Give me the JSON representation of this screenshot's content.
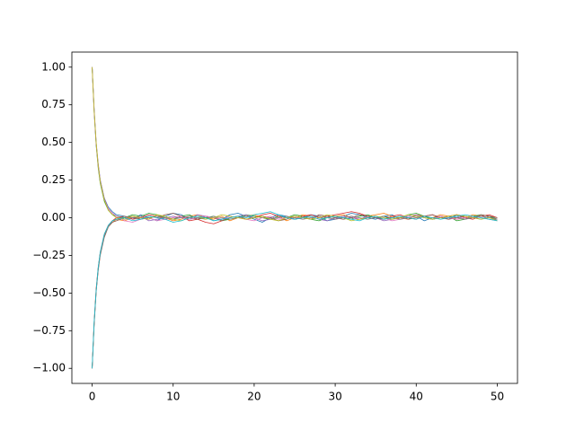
{
  "chart_data": {
    "type": "line",
    "x": [
      0,
      0.25,
      0.5,
      0.75,
      1,
      1.5,
      2,
      2.5,
      3,
      4,
      5,
      6,
      7,
      8,
      9,
      10,
      11,
      12,
      13,
      14,
      15,
      16,
      17,
      18,
      19,
      20,
      21,
      22,
      23,
      24,
      25,
      26,
      27,
      28,
      29,
      30,
      31,
      32,
      33,
      34,
      35,
      36,
      37,
      38,
      39,
      40,
      41,
      42,
      43,
      44,
      45,
      46,
      47,
      48,
      49,
      50
    ],
    "xlim": [
      -2.5,
      52.5
    ],
    "xticks": [
      0,
      10,
      20,
      30,
      40,
      50
    ],
    "ylim": [
      -1.1,
      1.1
    ],
    "yticks": [
      {
        "value": -1,
        "label": "−1.00"
      },
      {
        "value": -0.75,
        "label": "−0.75"
      },
      {
        "value": -0.5,
        "label": "−0.50"
      },
      {
        "value": -0.25,
        "label": "−0.25"
      },
      {
        "value": 0,
        "label": "0.00"
      },
      {
        "value": 0.25,
        "label": "0.25"
      },
      {
        "value": 0.5,
        "label": "0.50"
      },
      {
        "value": 0.75,
        "label": "0.75"
      },
      {
        "value": 1,
        "label": "1.00"
      }
    ],
    "series": [
      {
        "color": "#1f77b4",
        "values": [
          1,
          0.71,
          0.49,
          0.35,
          0.25,
          0.13,
          0.07,
          0.04,
          0.02,
          0.01,
          -0.01,
          0.02,
          0.0,
          -0.02,
          0.01,
          0.03,
          0.02,
          -0.01,
          0.0,
          0.01,
          -0.02,
          -0.01,
          0.02,
          0.03,
          0.01,
          -0.01,
          -0.03,
          0.0,
          0.02,
          0.01,
          -0.01,
          0.0,
          0.02,
          0.01,
          -0.02,
          -0.01,
          0.01,
          0.03,
          0.02,
          0.0,
          -0.01,
          0.01,
          0.02,
          -0.01,
          0.0,
          0.01,
          -0.02,
          0.0,
          0.01,
          -0.01,
          0.02,
          0.01,
          0.0,
          -0.01,
          0.01,
          -0.02
        ]
      },
      {
        "color": "#ff7f0e",
        "values": [
          -1,
          -0.7,
          -0.48,
          -0.34,
          -0.24,
          -0.12,
          -0.06,
          -0.03,
          -0.01,
          -0.02,
          0.0,
          0.01,
          -0.01,
          0.02,
          0.0,
          -0.02,
          -0.01,
          0.01,
          0.02,
          0.0,
          -0.01,
          0.01,
          -0.02,
          0.0,
          0.01,
          0.02,
          0.0,
          -0.01,
          0.01,
          -0.02,
          0.0,
          0.02,
          0.01,
          -0.01,
          0.0,
          0.01,
          0.02,
          0.0,
          -0.01,
          0.01,
          0.02,
          0.03,
          0.01,
          0.0,
          -0.01,
          0.02,
          0.01,
          0.0,
          0.02,
          0.01,
          -0.01,
          0.0,
          0.02,
          0.01,
          0.0,
          -0.01
        ]
      },
      {
        "color": "#2ca02c",
        "values": [
          1,
          0.7,
          0.48,
          0.33,
          0.23,
          0.11,
          0.05,
          0.02,
          0.01,
          0.0,
          0.02,
          0.01,
          0.03,
          0.02,
          0.0,
          -0.01,
          0.01,
          0.02,
          -0.01,
          0.0,
          0.01,
          -0.02,
          -0.01,
          0.0,
          0.02,
          0.01,
          0.0,
          -0.01,
          0.01,
          0.0,
          0.02,
          0.01,
          -0.01,
          -0.02,
          0.0,
          0.01,
          0.0,
          -0.01,
          0.01,
          0.02,
          0.0,
          0.01,
          -0.01,
          0.0,
          0.02,
          0.03,
          0.01,
          -0.01,
          0.0,
          0.01,
          -0.02,
          -0.01,
          0.01,
          0.02,
          0.01,
          -0.01
        ]
      },
      {
        "color": "#d62728",
        "values": [
          -1,
          -0.69,
          -0.47,
          -0.33,
          -0.23,
          -0.11,
          -0.05,
          -0.02,
          0.0,
          0.01,
          -0.01,
          0.0,
          0.02,
          0.01,
          -0.01,
          0.0,
          0.01,
          -0.02,
          -0.01,
          -0.03,
          -0.04,
          -0.02,
          0.0,
          0.01,
          -0.01,
          0.0,
          0.02,
          0.03,
          0.01,
          0.0,
          -0.01,
          0.01,
          0.02,
          0.0,
          0.01,
          0.02,
          0.03,
          0.04,
          0.03,
          0.01,
          0.0,
          -0.01,
          0.01,
          0.02,
          0.0,
          -0.01,
          0.01,
          0.02,
          0.0,
          0.01,
          0.02,
          0.0,
          -0.01,
          0.01,
          0.02,
          0.0
        ]
      },
      {
        "color": "#9467bd",
        "values": [
          1,
          0.72,
          0.5,
          0.36,
          0.25,
          0.13,
          0.06,
          0.03,
          0.01,
          -0.01,
          0.0,
          0.01,
          -0.02,
          -0.01,
          0.0,
          0.01,
          0.0,
          -0.01,
          0.02,
          0.01,
          0.0,
          -0.01,
          0.0,
          0.01,
          0.02,
          0.0,
          -0.02,
          -0.01,
          0.0,
          0.01,
          -0.01,
          0.0,
          0.01,
          -0.01,
          -0.02,
          0.0,
          0.01,
          0.0,
          -0.01,
          0.01,
          0.0,
          -0.02,
          -0.01,
          0.0,
          0.01,
          0.02,
          0.0,
          -0.01,
          0.01,
          0.0,
          0.01,
          -0.01,
          0.0,
          0.01,
          0.0,
          -0.01
        ]
      },
      {
        "color": "#8c564b",
        "values": [
          -1,
          -0.71,
          -0.49,
          -0.35,
          -0.25,
          -0.13,
          -0.06,
          -0.03,
          -0.02,
          0.0,
          0.01,
          -0.01,
          0.01,
          0.0,
          0.02,
          0.03,
          0.01,
          0.0,
          -0.01,
          0.01,
          0.0,
          -0.02,
          0.0,
          0.01,
          -0.01,
          0.0,
          0.01,
          0.0,
          -0.02,
          -0.01,
          0.01,
          0.0,
          -0.01,
          0.02,
          0.01,
          0.0,
          -0.01,
          0.0,
          0.02,
          0.01,
          0.0,
          -0.01,
          0.0,
          0.01,
          -0.01,
          0.0,
          0.01,
          0.02,
          0.0,
          -0.01,
          0.0,
          0.01,
          0.0,
          0.02,
          0.01,
          0.0
        ]
      },
      {
        "color": "#e377c2",
        "values": [
          1,
          0.7,
          0.49,
          0.34,
          0.24,
          0.12,
          0.06,
          0.03,
          0.01,
          -0.02,
          -0.03,
          -0.01,
          0.0,
          -0.02,
          -0.01,
          0.0,
          0.01,
          -0.01,
          0.0,
          0.01,
          0.0,
          -0.01,
          0.01,
          0.0,
          -0.01,
          -0.02,
          0.0,
          0.01,
          -0.01,
          0.0,
          0.01,
          -0.01,
          0.0,
          0.01,
          0.0,
          -0.01,
          0.0,
          0.01,
          -0.01,
          0.0,
          0.01,
          0.0,
          -0.02,
          -0.01,
          0.0,
          0.01,
          0.0,
          -0.01,
          0.01,
          0.0,
          -0.01,
          0.0,
          0.01,
          0.0,
          -0.01,
          -0.02
        ]
      },
      {
        "color": "#7f7f7f",
        "values": [
          -1,
          -0.7,
          -0.49,
          -0.34,
          -0.24,
          -0.12,
          -0.06,
          -0.02,
          -0.01,
          0.01,
          0.0,
          -0.01,
          0.0,
          0.01,
          0.0,
          -0.01,
          0.0,
          0.01,
          0.0,
          -0.01,
          0.01,
          0.0,
          -0.01,
          0.0,
          0.01,
          0.0,
          0.01,
          -0.01,
          0.0,
          0.01,
          0.0,
          -0.01,
          0.0,
          0.01,
          0.0,
          -0.01,
          0.0,
          0.01,
          0.0,
          -0.01,
          0.0,
          0.01,
          0.0,
          -0.01,
          0.0,
          0.01,
          0.0,
          -0.01,
          0.0,
          0.01,
          0.0,
          -0.01,
          0.0,
          0.01,
          0.0,
          -0.01
        ]
      },
      {
        "color": "#bcbd22",
        "values": [
          1,
          0.71,
          0.5,
          0.35,
          0.24,
          0.12,
          0.05,
          0.02,
          0.0,
          -0.01,
          0.01,
          0.0,
          -0.01,
          0.02,
          0.01,
          -0.01,
          -0.02,
          0.0,
          0.01,
          -0.01,
          0.0,
          0.02,
          0.01,
          0.0,
          -0.01,
          0.0,
          0.01,
          -0.01,
          -0.02,
          0.0,
          0.01,
          0.0,
          -0.01,
          0.0,
          0.02,
          0.01,
          0.0,
          -0.02,
          -0.01,
          0.0,
          0.01,
          0.0,
          -0.01,
          0.0,
          0.02,
          0.01,
          0.0,
          -0.01,
          0.0,
          0.01,
          0.02,
          0.01,
          0.0,
          -0.01,
          0.0,
          -0.02
        ]
      },
      {
        "color": "#17becf",
        "values": [
          -1,
          -0.69,
          -0.48,
          -0.33,
          -0.23,
          -0.11,
          -0.05,
          -0.02,
          -0.01,
          0.0,
          -0.02,
          -0.01,
          0.01,
          0.0,
          -0.01,
          -0.03,
          -0.02,
          0.0,
          0.01,
          0.0,
          -0.02,
          -0.01,
          0.0,
          0.01,
          0.0,
          0.02,
          0.03,
          0.04,
          0.02,
          0.0,
          -0.01,
          0.0,
          0.01,
          -0.01,
          0.0,
          0.01,
          0.0,
          -0.01,
          -0.02,
          0.0,
          0.01,
          -0.01,
          0.0,
          0.01,
          0.0,
          -0.01,
          0.01,
          0.0,
          -0.01,
          0.0,
          0.01,
          0.02,
          0.01,
          0.0,
          -0.01,
          -0.02
        ]
      }
    ]
  }
}
